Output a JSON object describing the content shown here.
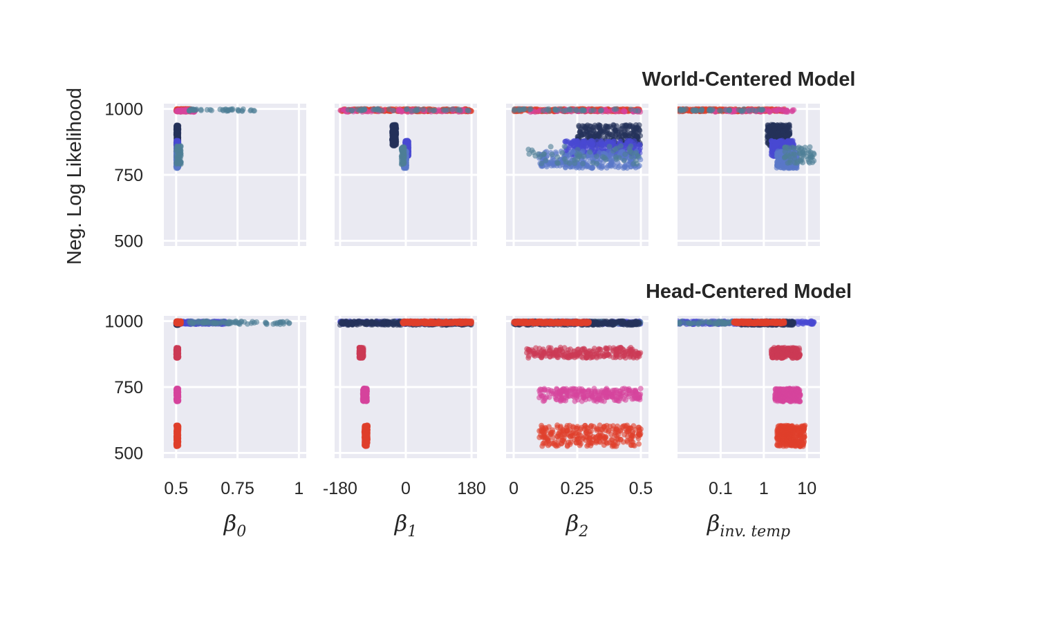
{
  "chart_data": {
    "type": "scatter",
    "ylabel": "Neg. Log Likelihood",
    "ylim": [
      480,
      1020
    ],
    "yticks": [
      500,
      750,
      1000
    ],
    "ytick_labels": [
      "500",
      "750",
      "1000"
    ],
    "grid": true,
    "legend": "none",
    "colors": {
      "navy": "#24325a",
      "blue": "#4a4ad2",
      "slate": "#5a78c8",
      "teal": "#4f7f96",
      "red": "#e0402c",
      "crimson": "#cc3b55",
      "magenta": "#d6449c",
      "background": "#eaeaf2",
      "grid": "#ffffff"
    },
    "columns": [
      {
        "key": "b0",
        "symbol": "β",
        "subscript": "0",
        "scale": "linear",
        "xlim": [
          0.45,
          1.03
        ],
        "xticks": [
          0.5,
          0.75,
          1
        ],
        "xtick_labels": [
          "0.5",
          "0.75",
          "1"
        ]
      },
      {
        "key": "b1",
        "symbol": "β",
        "subscript": "1",
        "scale": "linear",
        "xlim": [
          -195,
          195
        ],
        "xticks": [
          -180,
          0,
          180
        ],
        "xtick_labels": [
          "-180",
          "0",
          "180"
        ]
      },
      {
        "key": "b2",
        "symbol": "β",
        "subscript": "2",
        "scale": "linear",
        "xlim": [
          -0.03,
          0.53
        ],
        "xticks": [
          0,
          0.25,
          0.5
        ],
        "xtick_labels": [
          "0",
          "0.25",
          "0.5"
        ]
      },
      {
        "key": "bt",
        "symbol": "β",
        "subscript": "inv. temp",
        "scale": "log",
        "xlim": [
          0.01,
          20
        ],
        "xticks": [
          0.1,
          1,
          10
        ],
        "xtick_labels": [
          "0.1",
          "1",
          "10"
        ]
      }
    ],
    "rows": [
      {
        "title": "World-Centered Model",
        "groups": [
          {
            "color": "red",
            "n": 300,
            "y": [
              990,
              1000
            ],
            "x": {
              "b0": [
                0.5,
                0.56
              ],
              "b1": [
                -180,
                180
              ],
              "b2": [
                0.0,
                0.5
              ],
              "bt": [
                0.01,
                3
              ]
            }
          },
          {
            "color": "magenta",
            "n": 60,
            "y": [
              988,
              998
            ],
            "x": {
              "b0": [
                0.5,
                0.58
              ],
              "b1": [
                -180,
                180
              ],
              "b2": [
                0.05,
                0.5
              ],
              "bt": [
                0.05,
                5
              ]
            }
          },
          {
            "color": "teal",
            "n": 40,
            "y": [
              992,
              1000
            ],
            "x": {
              "b0": [
                0.55,
                0.85
              ],
              "b1": [
                -180,
                180
              ],
              "b2": [
                0.0,
                0.5
              ],
              "bt": [
                0.01,
                1
              ]
            }
          },
          {
            "color": "navy",
            "n": 240,
            "y": [
              860,
              940
            ],
            "x": {
              "b0": [
                0.5,
                0.51
              ],
              "b1": [
                -38,
                -26
              ],
              "b2": [
                0.25,
                0.5
              ],
              "bt": [
                1.2,
                4
              ]
            }
          },
          {
            "color": "blue",
            "n": 240,
            "y": [
              820,
              880
            ],
            "x": {
              "b0": [
                0.5,
                0.51
              ],
              "b1": [
                -2,
                8
              ],
              "b2": [
                0.2,
                0.5
              ],
              "bt": [
                1.5,
                5
              ]
            }
          },
          {
            "color": "slate",
            "n": 240,
            "y": [
              775,
              840
            ],
            "x": {
              "b0": [
                0.5,
                0.51
              ],
              "b1": [
                -6,
                2
              ],
              "b2": [
                0.1,
                0.5
              ],
              "bt": [
                2,
                6
              ]
            }
          },
          {
            "color": "teal",
            "n": 60,
            "y": [
              790,
              860
            ],
            "x": {
              "b0": [
                0.5,
                0.52
              ],
              "b1": [
                -12,
                -4
              ],
              "b2": [
                0.05,
                0.5
              ],
              "bt": [
                3,
                15
              ]
            }
          }
        ]
      },
      {
        "title": "Head-Centered Model",
        "groups": [
          {
            "color": "blue",
            "n": 200,
            "y": [
              988,
              1000
            ],
            "x": {
              "b0": [
                0.5,
                0.7
              ],
              "b1": [
                -180,
                180
              ],
              "b2": [
                0.0,
                0.5
              ],
              "bt": [
                0.01,
                15
              ]
            }
          },
          {
            "color": "teal",
            "n": 80,
            "y": [
              988,
              1000
            ],
            "x": {
              "b0": [
                0.55,
                0.97
              ],
              "b1": [
                -60,
                180
              ],
              "b2": [
                0.0,
                0.5
              ],
              "bt": [
                0.01,
                2
              ]
            }
          },
          {
            "color": "navy",
            "n": 260,
            "y": [
              985,
              1000
            ],
            "x": {
              "b0": [
                0.5,
                0.51
              ],
              "b1": [
                -180,
                180
              ],
              "b2": [
                0.0,
                0.5
              ],
              "bt": [
                0.3,
                5
              ]
            }
          },
          {
            "color": "red",
            "n": 300,
            "y": [
              990,
              1000
            ],
            "x": {
              "b0": [
                0.5,
                0.52
              ],
              "b1": [
                -10,
                180
              ],
              "b2": [
                0.0,
                0.3
              ],
              "bt": [
                0.2,
                3
              ]
            }
          },
          {
            "color": "crimson",
            "n": 220,
            "y": [
              860,
              900
            ],
            "x": {
              "b0": [
                0.5,
                0.51
              ],
              "b1": [
                -128,
                -116
              ],
              "b2": [
                0.05,
                0.5
              ],
              "bt": [
                1.5,
                7
              ]
            }
          },
          {
            "color": "magenta",
            "n": 220,
            "y": [
              695,
              745
            ],
            "x": {
              "b0": [
                0.5,
                0.51
              ],
              "b1": [
                -118,
                -106
              ],
              "b2": [
                0.1,
                0.5
              ],
              "bt": [
                1.8,
                7
              ]
            }
          },
          {
            "color": "red",
            "n": 260,
            "y": [
              525,
              605
            ],
            "x": {
              "b0": [
                0.5,
                0.51
              ],
              "b1": [
                -114,
                -104
              ],
              "b2": [
                0.1,
                0.5
              ],
              "bt": [
                2,
                9
              ]
            }
          }
        ]
      }
    ]
  }
}
